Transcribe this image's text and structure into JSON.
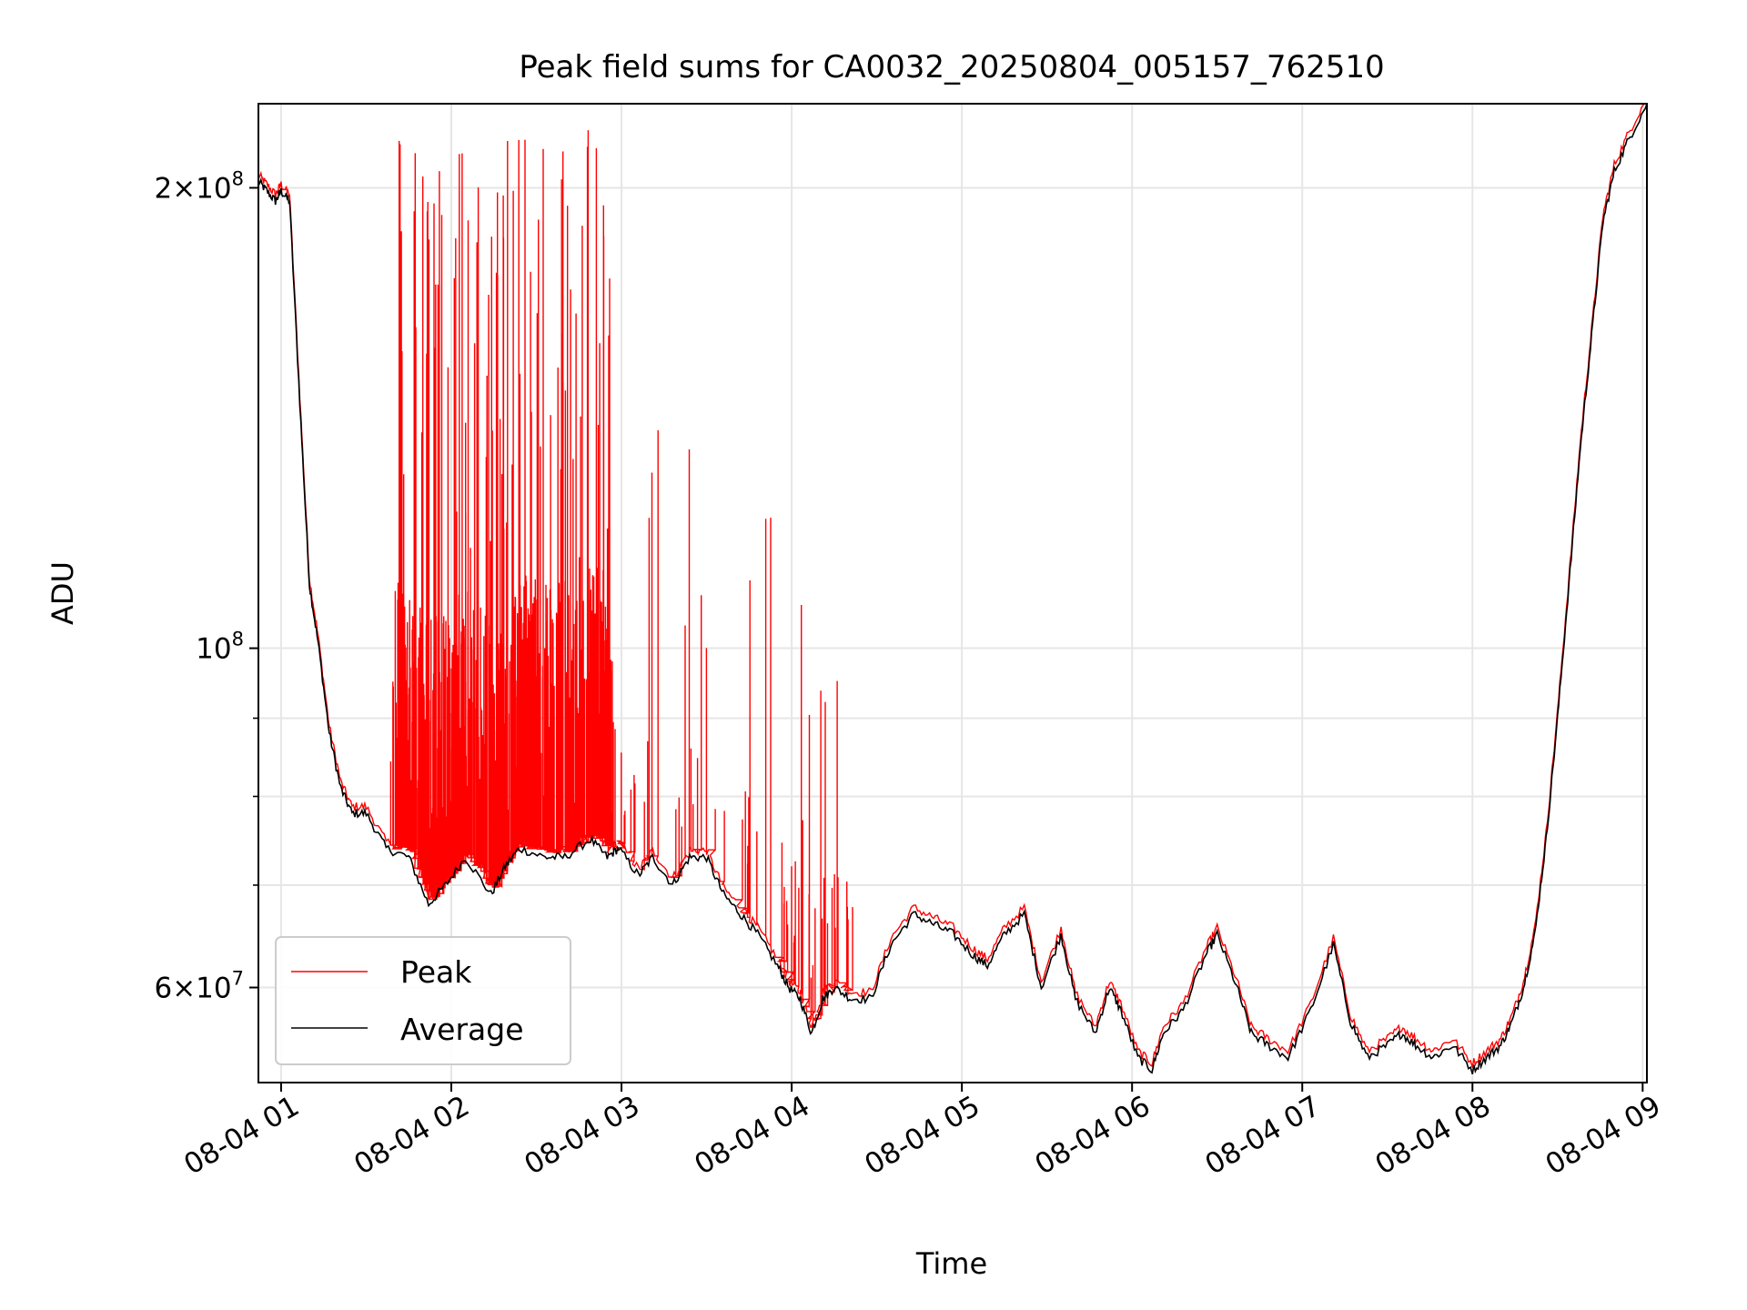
{
  "chart_data": {
    "type": "line",
    "title": "Peak field sums for CA0032_20250804_005157_762510",
    "xlabel": "Time",
    "ylabel": "ADU",
    "xaxis": {
      "type": "datetime",
      "range": [
        "2025-08-04T00:52:00",
        "2025-08-04T09:01:30"
      ],
      "ticks": [
        "08-04 01",
        "08-04 02",
        "08-04 03",
        "08-04 04",
        "08-04 05",
        "08-04 06",
        "08-04 07",
        "08-04 08",
        "08-04 09"
      ]
    },
    "yaxis": {
      "scale": "log",
      "range": [
        52000000.0,
        227000000.0
      ],
      "major_ticks": [
        {
          "value": 60000000,
          "base": "6×10",
          "exp": "7"
        },
        {
          "value": 100000000,
          "base": "10",
          "exp": "8"
        },
        {
          "value": 200000000,
          "base": "2×10",
          "exp": "8"
        }
      ],
      "minor_ticks": [
        70000000,
        80000000,
        90000000
      ]
    },
    "grid": true,
    "legend": {
      "position": "lower-left"
    },
    "series": [
      {
        "name": "Peak",
        "color": "#ff0000"
      },
      {
        "name": "Average",
        "color": "#000000",
        "x": [
          "2025-08-04T00:52:00",
          "2025-08-04T00:55:00",
          "2025-08-04T00:58:00",
          "2025-08-04T01:00:00",
          "2025-08-04T01:03:00",
          "2025-08-04T01:07:00",
          "2025-08-04T01:10:00",
          "2025-08-04T01:13:00",
          "2025-08-04T01:17:00",
          "2025-08-04T01:21:00",
          "2025-08-04T01:25:00",
          "2025-08-04T01:30:00",
          "2025-08-04T01:37:00",
          "2025-08-04T01:45:00",
          "2025-08-04T01:52:00",
          "2025-08-04T01:58:00",
          "2025-08-04T02:05:00",
          "2025-08-04T02:14:00",
          "2025-08-04T02:19:00",
          "2025-08-04T02:24:00",
          "2025-08-04T02:33:00",
          "2025-08-04T02:40:00",
          "2025-08-04T02:49:00",
          "2025-08-04T02:55:00",
          "2025-08-04T02:59:00",
          "2025-08-04T03:06:00",
          "2025-08-04T03:11:00",
          "2025-08-04T03:18:00",
          "2025-08-04T03:24:00",
          "2025-08-04T03:30:00",
          "2025-08-04T03:36:00",
          "2025-08-04T03:42:00",
          "2025-08-04T03:48:00",
          "2025-08-04T03:55:00",
          "2025-08-04T03:59:00",
          "2025-08-04T04:03:00",
          "2025-08-04T04:07:00",
          "2025-08-04T04:11:00",
          "2025-08-04T04:15:00",
          "2025-08-04T04:21:00",
          "2025-08-04T04:28:00",
          "2025-08-04T04:35:00",
          "2025-08-04T04:43:00",
          "2025-08-04T04:50:00",
          "2025-08-04T04:57:00",
          "2025-08-04T05:04:00",
          "2025-08-04T05:09:00",
          "2025-08-04T05:15:00",
          "2025-08-04T05:22:00",
          "2025-08-04T05:28:00",
          "2025-08-04T05:35:00",
          "2025-08-04T05:40:00",
          "2025-08-04T05:47:00",
          "2025-08-04T05:52:00",
          "2025-08-04T05:56:00",
          "2025-08-04T06:02:00",
          "2025-08-04T06:07:00",
          "2025-08-04T06:11:00",
          "2025-08-04T06:18:00",
          "2025-08-04T06:26:00",
          "2025-08-04T06:30:00",
          "2025-08-04T06:37:00",
          "2025-08-04T06:42:00",
          "2025-08-04T06:48:00",
          "2025-08-04T06:55:00",
          "2025-08-04T07:03:00",
          "2025-08-04T07:11:00",
          "2025-08-04T07:17:00",
          "2025-08-04T07:23:00",
          "2025-08-04T07:30:00",
          "2025-08-04T07:35:00",
          "2025-08-04T07:40:00",
          "2025-08-04T07:46:00",
          "2025-08-04T07:53:00",
          "2025-08-04T08:00:00",
          "2025-08-04T08:05:00",
          "2025-08-04T08:10:00",
          "2025-08-04T08:14:00",
          "2025-08-04T08:18:00",
          "2025-08-04T08:22:00",
          "2025-08-04T08:26:00",
          "2025-08-04T08:30:00",
          "2025-08-04T08:34:00",
          "2025-08-04T08:38:00",
          "2025-08-04T08:42:00",
          "2025-08-04T08:46:00",
          "2025-08-04T08:50:00",
          "2025-08-04T08:55:00",
          "2025-08-04T09:01:30"
        ],
        "values": [
          202000000,
          199000000,
          196000000,
          199000000,
          196000000,
          140000000,
          110000000,
          101000000,
          88000000,
          81000000,
          78000000,
          78000000,
          74000000,
          73000000,
          68000000,
          70000000,
          73000000,
          69000000,
          72000000,
          74000000,
          73000000,
          73000000,
          75000000,
          73000000,
          74000000,
          71000000,
          73000000,
          70000000,
          73000000,
          73000000,
          69000000,
          67000000,
          65000000,
          62000000,
          60000000,
          59000000,
          56000000,
          59000000,
          60000000,
          59000000,
          59000000,
          64000000,
          67000000,
          66000000,
          65000000,
          63000000,
          62000000,
          65000000,
          67000000,
          60000000,
          65000000,
          59000000,
          56000000,
          60000000,
          58000000,
          54000000,
          53000000,
          56000000,
          58000000,
          63000000,
          65000000,
          60000000,
          56000000,
          55000000,
          54000000,
          58000000,
          64000000,
          57000000,
          54000000,
          55000000,
          56000000,
          55000000,
          54000000,
          55000000,
          53000000,
          54000000,
          55000000,
          57000000,
          60000000,
          65000000,
          75000000,
          90000000,
          110000000,
          135000000,
          160000000,
          190000000,
          205000000,
          215000000,
          227000000
        ]
      }
    ]
  }
}
